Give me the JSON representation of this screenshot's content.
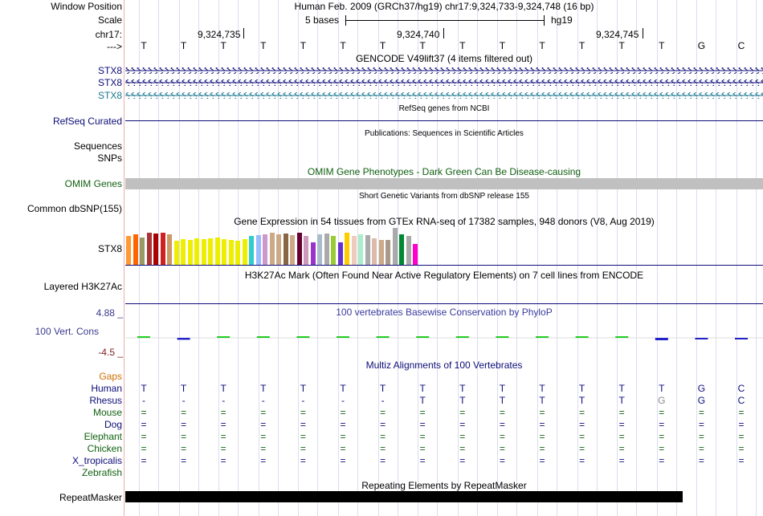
{
  "header": {
    "window_position_label": "Window Position",
    "window_position_value": "Human Feb. 2009 (GRCh37/hg19)   chr17:9,324,733-9,324,748 (16 bp)",
    "scale_label": "Scale",
    "scale_text": "5 bases",
    "scale_assembly": "hg19",
    "chrom_label": "chr17:",
    "ruler_ticks": [
      "9,324,735",
      "9,324,740",
      "9,324,745"
    ],
    "strand_label": "--->",
    "bases": [
      "T",
      "T",
      "T",
      "T",
      "T",
      "T",
      "T",
      "T",
      "T",
      "T",
      "T",
      "T",
      "T",
      "T",
      "G",
      "C"
    ]
  },
  "gencode": {
    "title": "GENCODE V49lift37 (4 items filtered out)",
    "items": [
      "STX8",
      "STX8",
      "STX8"
    ],
    "colors": [
      "#0c0c78",
      "#0c0c78",
      "#1a7890"
    ]
  },
  "refseq": {
    "title": "RefSeq genes from NCBI",
    "label": "RefSeq Curated"
  },
  "publications": {
    "title": "Publications: Sequences in Scientific Articles",
    "labels": [
      "Sequences",
      "SNPs"
    ]
  },
  "omim": {
    "title": "OMIM Gene Phenotypes - Dark Green Can Be Disease-causing",
    "label": "OMIM Genes"
  },
  "dbsnp": {
    "title": "Short Genetic Variants from dbSNP release 155",
    "label": "Common dbSNP(155)"
  },
  "gtex": {
    "title": "Gene Expression in 54 tissues from GTEx RNA-seq of 17382 samples, 948 donors (V8, Aug 2019)",
    "label": "STX8",
    "tissue_colors": [
      "#ff9933",
      "#ff6600",
      "#999966",
      "#aa3333",
      "#aa0000",
      "#cc2222",
      "#cc9966",
      "#eeee00",
      "#eeee00",
      "#eeee00",
      "#eeee00",
      "#eeee00",
      "#eeee00",
      "#eeee00",
      "#eeee00",
      "#eeee00",
      "#eeee00",
      "#eeee00",
      "#33cccc",
      "#99bbff",
      "#cc99cc",
      "#ccaa88",
      "#ccaa88",
      "#886644",
      "#ccaa88",
      "#660033",
      "#cc99bb",
      "#9933cc",
      "#aabbcc",
      "#aaaaaa",
      "#99cc33",
      "#6633cc",
      "#ffcc00",
      "#eeccbb",
      "#aaeecc",
      "#aaaaaa",
      "#ddbbaa",
      "#ccaa88",
      "#aa9988",
      "#aaaaaa",
      "#008833",
      "#aaaaaa",
      "#ff00cc"
    ],
    "tissue_values": [
      36,
      38,
      34,
      40,
      39,
      40,
      38,
      30,
      32,
      31,
      33,
      32,
      33,
      34,
      32,
      31,
      30,
      32,
      36,
      37,
      38,
      40,
      38,
      39,
      37,
      40,
      36,
      28,
      38,
      39,
      36,
      28,
      40,
      36,
      38,
      37,
      33,
      31,
      31,
      46,
      38,
      36,
      26
    ]
  },
  "h3k27ac": {
    "title": "H3K27Ac Mark (Often Found Near Active Regulatory Elements) on 7 cell lines from ENCODE",
    "label": "Layered H3K27Ac"
  },
  "conservation": {
    "title": "100 vertebrates Basewise Conservation by PhyloP",
    "label": "100 Vert. Cons",
    "max_label": "4.88 _",
    "min_label": "-4.5 _",
    "values": [
      0.4,
      -0.8,
      0.3,
      0.3,
      0.3,
      0.5,
      0.5,
      0.4,
      0.3,
      0.4,
      0.4,
      0.3,
      0.4,
      -1.0,
      -0.2,
      -0.1
    ]
  },
  "multiz": {
    "title": "Multiz Alignments of 100 Vertebrates",
    "gaps_label": "Gaps",
    "species": [
      {
        "name": "Human",
        "color": "#0c0c78",
        "bases": [
          "T",
          "T",
          "T",
          "T",
          "T",
          "T",
          "T",
          "T",
          "T",
          "T",
          "T",
          "T",
          "T",
          "T",
          "G",
          "C"
        ]
      },
      {
        "name": "Rhesus",
        "color": "#0c0c78",
        "bases": [
          "-",
          "-",
          "-",
          "-",
          "-",
          "-",
          "-",
          "T",
          "T",
          "T",
          "T",
          "T",
          "T",
          "G",
          "G",
          "C"
        ]
      },
      {
        "name": "Mouse",
        "color": "#106010",
        "bases": [
          "=",
          "=",
          "=",
          "=",
          "=",
          "=",
          "=",
          "=",
          "=",
          "=",
          "=",
          "=",
          "=",
          "=",
          "=",
          "="
        ]
      },
      {
        "name": "Dog",
        "color": "#0c0c78",
        "bases": [
          "=",
          "=",
          "=",
          "=",
          "=",
          "=",
          "=",
          "=",
          "=",
          "=",
          "=",
          "=",
          "=",
          "=",
          "=",
          "="
        ]
      },
      {
        "name": "Elephant",
        "color": "#106010",
        "bases": [
          "=",
          "=",
          "=",
          "=",
          "=",
          "=",
          "=",
          "=",
          "=",
          "=",
          "=",
          "=",
          "=",
          "=",
          "=",
          "="
        ]
      },
      {
        "name": "Chicken",
        "color": "#106010",
        "bases": [
          "=",
          "=",
          "=",
          "=",
          "=",
          "=",
          "=",
          "=",
          "=",
          "=",
          "=",
          "=",
          "=",
          "=",
          "=",
          "="
        ]
      },
      {
        "name": "X_tropicalis",
        "color": "#0c0c78",
        "bases": [
          "=",
          "=",
          "=",
          "=",
          "=",
          "=",
          "=",
          "=",
          "=",
          "=",
          "=",
          "=",
          "=",
          "=",
          "=",
          "="
        ]
      },
      {
        "name": "Zebrafish",
        "color": "#106010",
        "bases": [
          "",
          "",
          "",
          "",
          "",
          "",
          "",
          "",
          "",
          "",
          "",
          "",
          "",
          "",
          "",
          ""
        ]
      }
    ]
  },
  "repeatmasker": {
    "title": "Repeating Elements by RepeatMasker",
    "label": "RepeatMasker"
  },
  "colors": {
    "navy": "#0c0c78",
    "green": "#106010",
    "orange": "#d07000",
    "omim_bar": "#c0c0c0",
    "phylop_pos": "#22cc22",
    "phylop_neg": "#2222cc"
  }
}
